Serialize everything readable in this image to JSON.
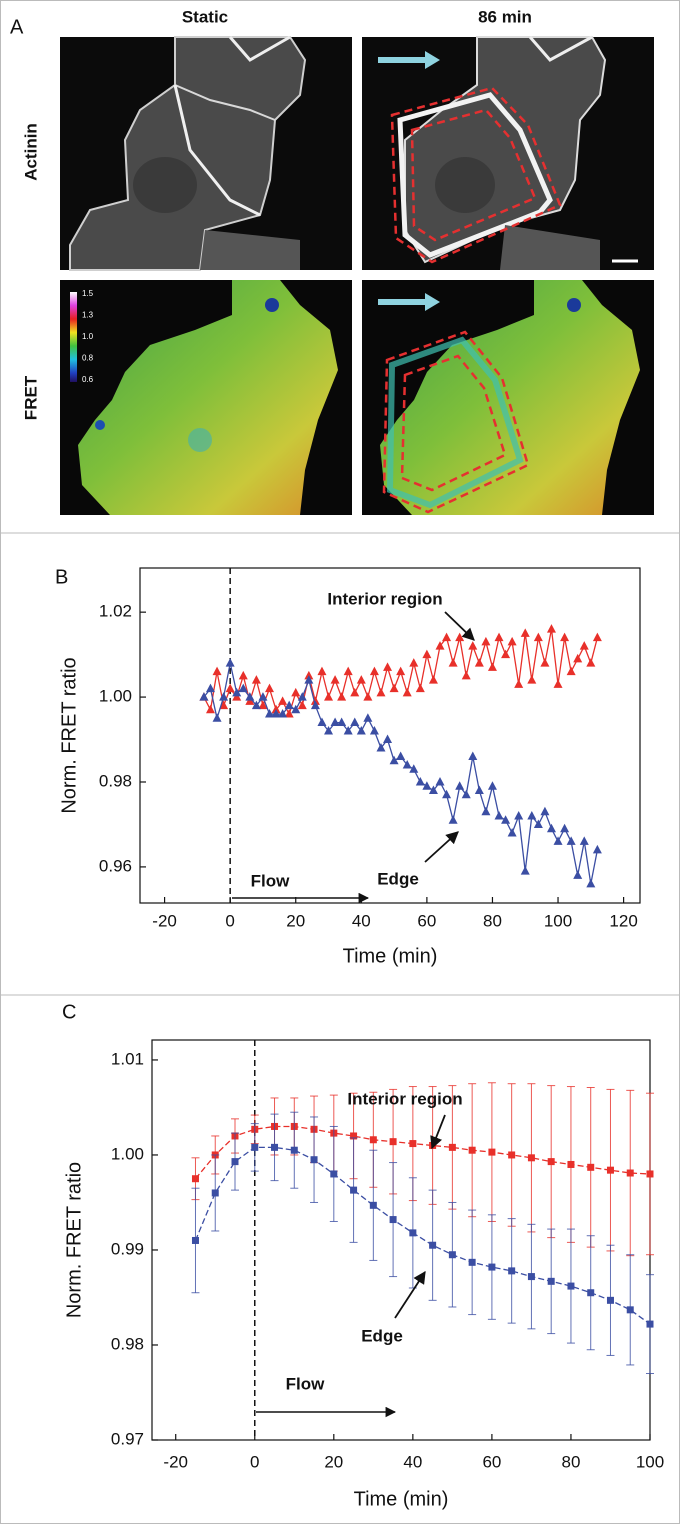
{
  "panel_a": {
    "label": "A",
    "columns": [
      "Static",
      "86 min"
    ],
    "rows": [
      "Actinin",
      "FRET"
    ],
    "colorbar_ticks": [
      "1.5",
      "1.3",
      "1.0",
      "0.8",
      "0.6"
    ]
  },
  "chart_data": [
    {
      "type": "line",
      "panel_label": "B",
      "x_label": "Time (min)",
      "y_label": "Norm. FRET ratio",
      "flow_label": "Flow",
      "marker": "triangle",
      "line_style": "solid",
      "reference_line_x": 0,
      "xlim": [
        -27.5,
        125
      ],
      "ylim": [
        0.9515,
        1.0304
      ],
      "xticks": [
        -20,
        0,
        20,
        40,
        60,
        80,
        100,
        120
      ],
      "yticks": [
        0.96,
        0.98,
        {
          "value": 1,
          "label": "1.00"
        },
        1.02
      ],
      "x": [
        -8,
        -6,
        -4,
        -2,
        0,
        2,
        4,
        6,
        8,
        10,
        12,
        14,
        16,
        18,
        20,
        22,
        24,
        26,
        28,
        30,
        32,
        34,
        36,
        38,
        40,
        42,
        44,
        46,
        48,
        50,
        52,
        54,
        56,
        58,
        60,
        62,
        64,
        66,
        68,
        70,
        72,
        74,
        76,
        78,
        80,
        82,
        84,
        86,
        88,
        90,
        92,
        94,
        96,
        98,
        100,
        102,
        104,
        106,
        108,
        110,
        112
      ],
      "series": [
        {
          "name": "Interior region",
          "color": "#e8302a",
          "values": [
            1.0,
            0.997,
            1.006,
            0.998,
            1.002,
            1.0,
            1.005,
            0.999,
            1.004,
            0.998,
            1.002,
            0.997,
            0.999,
            0.996,
            1.001,
            0.998,
            1.005,
            0.999,
            1.006,
            1.0,
            1.004,
            1.0,
            1.006,
            1.001,
            1.004,
            1.0,
            1.006,
            1.001,
            1.007,
            1.002,
            1.006,
            1.001,
            1.008,
            1.002,
            1.01,
            1.004,
            1.012,
            1.014,
            1.008,
            1.014,
            1.005,
            1.012,
            1.008,
            1.013,
            1.007,
            1.014,
            1.01,
            1.013,
            1.003,
            1.015,
            1.004,
            1.014,
            1.008,
            1.016,
            1.003,
            1.014,
            1.006,
            1.009,
            1.012,
            1.008,
            1.014
          ]
        },
        {
          "name": "Edge",
          "color": "#3b4ea3",
          "values": [
            1.0,
            1.002,
            0.995,
            1.0,
            1.008,
            1.001,
            1.002,
            1.0,
            0.998,
            1.0,
            0.996,
            0.996,
            0.996,
            0.998,
            0.997,
            1.0,
            1.004,
            0.998,
            0.994,
            0.992,
            0.994,
            0.994,
            0.992,
            0.994,
            0.992,
            0.995,
            0.992,
            0.988,
            0.99,
            0.985,
            0.986,
            0.984,
            0.983,
            0.98,
            0.979,
            0.978,
            0.98,
            0.977,
            0.971,
            0.979,
            0.977,
            0.986,
            0.978,
            0.973,
            0.979,
            0.972,
            0.971,
            0.968,
            0.972,
            0.959,
            0.972,
            0.97,
            0.973,
            0.969,
            0.966,
            0.969,
            0.966,
            0.958,
            0.966,
            0.956,
            0.964
          ]
        }
      ]
    },
    {
      "type": "line",
      "panel_label": "C",
      "x_label": "Time (min)",
      "y_label": "Norm. FRET ratio",
      "flow_label": "Flow",
      "marker": "square",
      "line_style": "dashed",
      "reference_line_x": 0,
      "xlim": [
        -26,
        100
      ],
      "ylim": [
        0.97,
        1.0121
      ],
      "xticks": [
        -20,
        0,
        20,
        40,
        60,
        80,
        100
      ],
      "yticks": [
        0.97,
        0.98,
        0.99,
        {
          "value": 1,
          "label": "1.00"
        },
        1.01
      ],
      "x": [
        -15,
        -10,
        -5,
        0,
        5,
        10,
        15,
        20,
        25,
        30,
        35,
        40,
        45,
        50,
        55,
        60,
        65,
        70,
        75,
        80,
        85,
        90,
        95,
        100
      ],
      "series": [
        {
          "name": "Interior region",
          "color": "#e8302a",
          "values": [
            0.9975,
            1.0,
            1.002,
            1.0027,
            1.003,
            1.003,
            1.0027,
            1.0023,
            1.002,
            1.0016,
            1.0014,
            1.0012,
            1.001,
            1.0008,
            1.0005,
            1.0003,
            1.0,
            0.9997,
            0.9993,
            0.999,
            0.9987,
            0.9984,
            0.9981,
            0.998
          ],
          "errors": [
            0.0022,
            0.002,
            0.0018,
            0.0015,
            0.003,
            0.003,
            0.0035,
            0.004,
            0.0045,
            0.005,
            0.0055,
            0.006,
            0.0062,
            0.0065,
            0.007,
            0.0073,
            0.0075,
            0.0078,
            0.008,
            0.0082,
            0.0084,
            0.0085,
            0.0087,
            0.0085
          ]
        },
        {
          "name": "Edge",
          "color": "#3b4ea3",
          "values": [
            0.991,
            0.996,
            0.9993,
            1.0008,
            1.0008,
            1.0005,
            0.9995,
            0.998,
            0.9963,
            0.9947,
            0.9932,
            0.9918,
            0.9905,
            0.9895,
            0.9887,
            0.9882,
            0.9878,
            0.9872,
            0.9867,
            0.9862,
            0.9855,
            0.9847,
            0.9837,
            0.9822
          ],
          "errors": [
            0.0055,
            0.004,
            0.003,
            0.0025,
            0.0035,
            0.004,
            0.0045,
            0.005,
            0.0055,
            0.0058,
            0.006,
            0.0058,
            0.0058,
            0.0055,
            0.0055,
            0.0055,
            0.0055,
            0.0055,
            0.0055,
            0.006,
            0.006,
            0.0058,
            0.0058,
            0.0052
          ]
        }
      ]
    }
  ]
}
